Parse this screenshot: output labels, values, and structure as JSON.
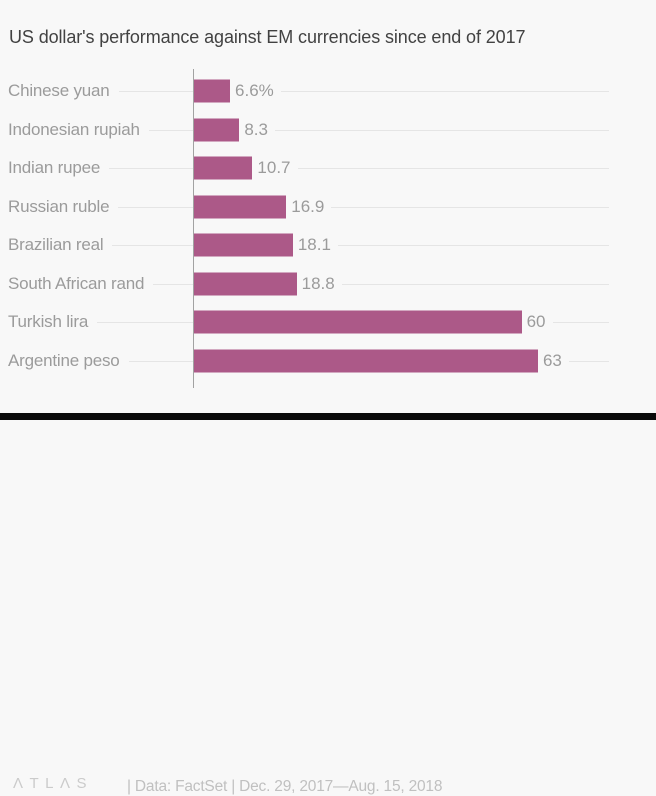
{
  "title": "US dollar's performance against EM currencies since end of 2017",
  "chart_data": {
    "type": "bar",
    "orientation": "horizontal",
    "title": "US dollar's performance against EM currencies since end of 2017",
    "categories": [
      "Chinese yuan",
      "Indonesian rupiah",
      "Indian rupee",
      "Russian ruble",
      "Brazilian real",
      "South African rand",
      "Turkish lira",
      "Argentine peso"
    ],
    "values": [
      6.6,
      8.3,
      10.7,
      16.9,
      18.1,
      18.8,
      60,
      63
    ],
    "value_labels": [
      "6.6%",
      "8.3",
      "10.7",
      "16.9",
      "18.1",
      "18.8",
      "60",
      "63"
    ],
    "unit": "percent",
    "xlabel": "",
    "ylabel": "",
    "xlim": [
      0,
      76
    ],
    "grid": "horizontal-row-guides",
    "legend": "none",
    "bar_color": "#ac5988"
  },
  "footer": {
    "logo_text": "ΛTLΛS",
    "source_text": "| Data: FactSet | Dec. 29, 2017—Aug. 15, 2018"
  },
  "colors": {
    "background": "#f8f8f8",
    "bar": "#ac5988",
    "axis": "#a2a2a2",
    "row_line": "#e5e5e5",
    "label": "#9b9b9b",
    "title": "#424242",
    "footer": "#c0c0c0",
    "logo": "#cbcbcb",
    "bottom_bar": "#0a0a0a"
  }
}
